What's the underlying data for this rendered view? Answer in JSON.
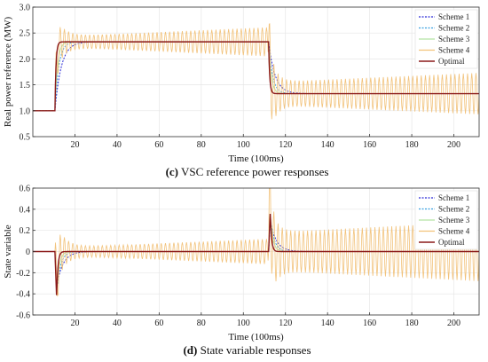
{
  "chart_data": [
    {
      "type": "line",
      "caption_label": "(c)",
      "caption_text": " VSC reference power responses",
      "xlabel": "Time (100ms)",
      "ylabel": "Real power reference (MW)",
      "xlim": [
        0,
        212
      ],
      "ylim": [
        0.5,
        3.0
      ],
      "xticks": [
        20,
        40,
        60,
        80,
        100,
        120,
        140,
        160,
        180,
        200
      ],
      "yticks": [
        0.5,
        1.0,
        1.5,
        2.0,
        2.5,
        3.0
      ],
      "ytick_labels": [
        "0.5",
        "1.0",
        "1.5",
        "2.0",
        "2.5",
        "3.0"
      ],
      "grid": true,
      "legend": "top-right",
      "series": [
        {
          "name": "Scheme 1",
          "color": "#2b2bd6",
          "dash": "2,1.5",
          "model": "first_order",
          "base": 1.0,
          "high": 2.33,
          "low": 1.33,
          "t_on": 10.5,
          "t_off": 112,
          "tau": 3.0
        },
        {
          "name": "Scheme 2",
          "color": "#3aa0e0",
          "dash": "2,1.5",
          "model": "first_order",
          "base": 1.0,
          "high": 2.33,
          "low": 1.33,
          "t_on": 10.5,
          "t_off": 112,
          "tau": 1.8
        },
        {
          "name": "Scheme 3",
          "color": "#b5e3a5",
          "dash": "",
          "model": "first_order",
          "base": 1.0,
          "high": 2.33,
          "low": 1.33,
          "t_on": 10.5,
          "t_off": 112,
          "tau": 1.2
        },
        {
          "name": "Scheme 4",
          "color": "#f2c27a",
          "dash": "",
          "model": "oscillating",
          "base": 1.0,
          "high": 2.33,
          "low": 1.33,
          "t_on": 10.5,
          "t_off": 112,
          "period": 2.0,
          "amp_on": [
            0.45,
            0.28
          ],
          "amp_off": [
            0.7,
            0.22,
            0.4
          ]
        },
        {
          "name": "Optimal",
          "color": "#8b1a1a",
          "dash": "",
          "model": "first_order",
          "base": 1.0,
          "high": 2.33,
          "low": 1.33,
          "t_on": 10.5,
          "t_off": 112,
          "tau": 0.5
        }
      ]
    },
    {
      "type": "line",
      "caption_label": "(d)",
      "caption_text": " State variable responses",
      "xlabel": "Time (100ms)",
      "ylabel": "State variable",
      "xlim": [
        0,
        212
      ],
      "ylim": [
        -0.6,
        0.6
      ],
      "xticks": [
        20,
        40,
        60,
        80,
        100,
        120,
        140,
        160,
        180,
        200
      ],
      "yticks": [
        -0.6,
        -0.4,
        -0.2,
        0,
        0.2,
        0.4,
        0.6
      ],
      "ytick_labels": [
        "-0.6",
        "-0.4",
        "-0.2",
        "0",
        "0.2",
        "0.4",
        "0.6"
      ],
      "grid": true,
      "legend": "top-right",
      "series": [
        {
          "name": "Scheme 1",
          "color": "#2b2bd6",
          "dash": "2,1.5",
          "model": "pulse",
          "t_on": 10.5,
          "t_off": 112,
          "peak_on": -0.33,
          "peak_off": 0.28,
          "tau": 3.0
        },
        {
          "name": "Scheme 2",
          "color": "#3aa0e0",
          "dash": "2,1.5",
          "model": "pulse",
          "t_on": 10.5,
          "t_off": 112,
          "peak_on": -0.38,
          "peak_off": 0.33,
          "tau": 1.8
        },
        {
          "name": "Scheme 3",
          "color": "#b5e3a5",
          "dash": "",
          "model": "pulse",
          "t_on": 10.5,
          "t_off": 112,
          "peak_on": -0.4,
          "peak_off": 0.36,
          "tau": 1.2
        },
        {
          "name": "Scheme 4",
          "color": "#f2c27a",
          "dash": "",
          "model": "pulse_osc",
          "t_on": 10.5,
          "t_off": 112,
          "peak_on": -0.45,
          "peak_off": 0.5,
          "period": 2.0,
          "amp_on": [
            0.3,
            0.12
          ],
          "amp_off": [
            0.35,
            0.18,
            0.28
          ]
        },
        {
          "name": "Optimal",
          "color": "#8b1a1a",
          "dash": "",
          "model": "pulse",
          "t_on": 10.5,
          "t_off": 112,
          "peak_on": -0.44,
          "peak_off": 0.38,
          "tau": 0.6
        }
      ]
    }
  ]
}
